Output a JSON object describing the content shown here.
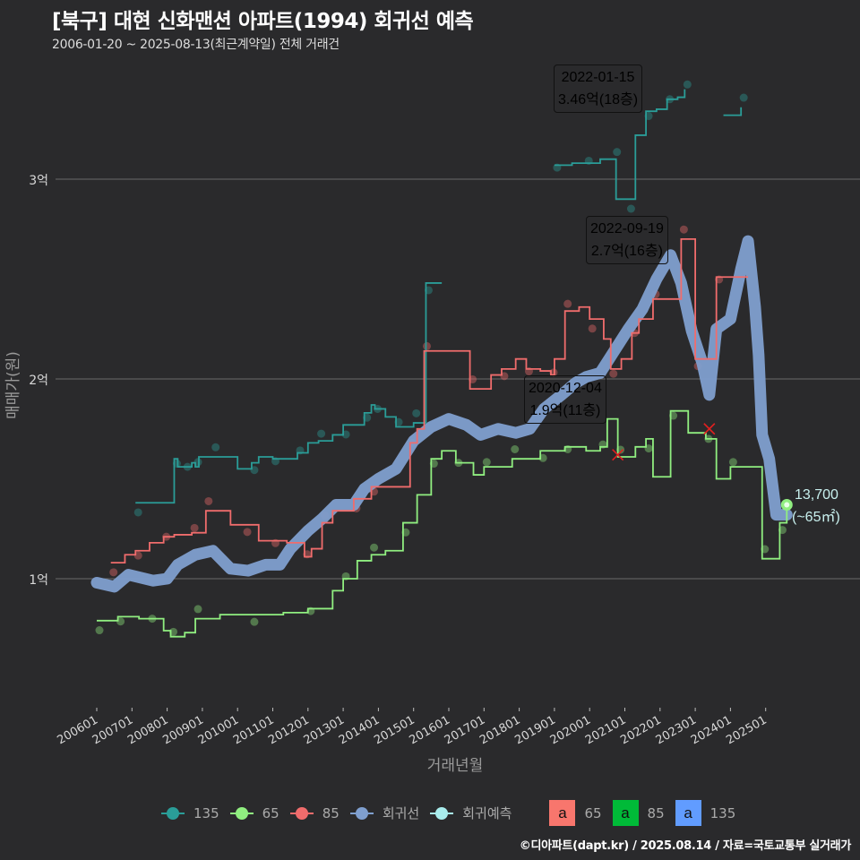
{
  "header": {
    "title": "[북구] 대현 신화맨션 아파트(1994) 회귀선 예측",
    "subtitle": "2006-01-20 ~ 2025-08-13(최근계약일) 전체 거래건"
  },
  "footer": {
    "credit": "©디아파트(dapt.kr) / 2025.08.14 / 자료=국토교통부 실거래가"
  },
  "colors": {
    "background": "#2a2a2c",
    "s135": "#2a9d98",
    "s65": "#90ee80",
    "s85": "#f06c6c",
    "regression": "#7f9fcf",
    "prediction": "#a8ecec",
    "box65": "#f8766d",
    "box85": "#00ba38",
    "box135": "#619cff"
  },
  "legend": {
    "lines": [
      {
        "label": "135",
        "color": "#2a9d98"
      },
      {
        "label": "65",
        "color": "#90ee80"
      },
      {
        "label": "85",
        "color": "#f06c6c"
      },
      {
        "label": "회귀선",
        "color": "#7f9fcf"
      },
      {
        "label": "회귀예측",
        "color": "#a8ecec"
      }
    ],
    "boxes": [
      {
        "glyph": "a",
        "label": "65",
        "color": "#f8766d"
      },
      {
        "glyph": "a",
        "label": "85",
        "color": "#00ba38"
      },
      {
        "glyph": "a",
        "label": "135",
        "color": "#619cff"
      }
    ]
  },
  "annotations": [
    {
      "date": "2022-01-15",
      "value": "3.46억(18층)",
      "color": "#619cff"
    },
    {
      "date": "2022-09-19",
      "value": "2.7억(16층)",
      "color": "#00ba38"
    },
    {
      "date": "2020-12-04",
      "value": "1.9억(11층)",
      "color": "#f8766d"
    }
  ],
  "prediction": {
    "value": "13,700",
    "area": "(~65㎡)"
  },
  "chart_data": {
    "type": "line",
    "title": "[북구] 대현 신화맨션 아파트(1994) 회귀선 예측",
    "subtitle": "2006-01-20 ~ 2025-08-13(최근계약일) 전체 거래건",
    "xlabel": "거래년월",
    "ylabel": "매매가(원)",
    "x_ticks": [
      "200601",
      "200701",
      "200801",
      "200901",
      "201001",
      "201101",
      "201201",
      "201301",
      "201401",
      "201501",
      "201601",
      "201701",
      "201801",
      "201901",
      "202001",
      "202101",
      "202201",
      "202301",
      "202401",
      "202501"
    ],
    "y_ticks": [
      "1억",
      "2억",
      "3억"
    ],
    "y_tick_values": [
      1.0,
      2.0,
      3.0
    ],
    "ylim": [
      0.4,
      3.6
    ],
    "y_unit": "억",
    "grid": true,
    "legend_position": "bottom",
    "series": [
      {
        "name": "135",
        "points": [
          [
            2007.1,
            1.38
          ],
          [
            2007.4,
            1.38
          ],
          [
            2008.2,
            1.6
          ],
          [
            2008.3,
            1.56
          ],
          [
            2008.5,
            1.56
          ],
          [
            2008.7,
            1.58
          ],
          [
            2008.8,
            1.56
          ],
          [
            2008.9,
            1.61
          ],
          [
            2009.3,
            1.61
          ],
          [
            2010.0,
            1.55
          ],
          [
            2010.4,
            1.58
          ],
          [
            2010.6,
            1.61
          ],
          [
            2011.0,
            1.6
          ],
          [
            2011.4,
            1.6
          ],
          [
            2011.7,
            1.63
          ],
          [
            2012.0,
            1.68
          ],
          [
            2012.3,
            1.69
          ],
          [
            2012.7,
            1.72
          ],
          [
            2013.0,
            1.77
          ],
          [
            2013.3,
            1.77
          ],
          [
            2013.6,
            1.83
          ],
          [
            2013.8,
            1.87
          ],
          [
            2013.9,
            1.85
          ],
          [
            2014.2,
            1.81
          ],
          [
            2014.5,
            1.76
          ],
          [
            2014.8,
            1.76
          ],
          [
            2015.0,
            1.78
          ],
          [
            2015.3,
            1.78
          ],
          [
            2015.35,
            2.48
          ],
          [
            2015.8,
            2.48
          ],
          [
            2019.0,
            3.07
          ],
          [
            2019.5,
            3.08
          ],
          [
            2019.9,
            3.08
          ],
          [
            2020.3,
            3.1
          ],
          [
            2020.7,
            3.1
          ],
          [
            2020.75,
            2.9
          ],
          [
            2021.1,
            2.9
          ],
          [
            2021.3,
            3.22
          ],
          [
            2021.6,
            3.34
          ],
          [
            2021.9,
            3.35
          ],
          [
            2022.2,
            3.4
          ],
          [
            2022.5,
            3.41
          ],
          [
            2022.7,
            3.45
          ],
          [
            2023.8,
            3.32
          ],
          [
            2024.3,
            3.36
          ]
        ]
      },
      {
        "name": "65",
        "points": [
          [
            2006.0,
            0.79
          ],
          [
            2006.3,
            0.79
          ],
          [
            2006.6,
            0.81
          ],
          [
            2007.2,
            0.8
          ],
          [
            2007.5,
            0.8
          ],
          [
            2007.9,
            0.74
          ],
          [
            2008.1,
            0.71
          ],
          [
            2008.5,
            0.73
          ],
          [
            2008.8,
            0.8
          ],
          [
            2009.5,
            0.82
          ],
          [
            2010.4,
            0.82
          ],
          [
            2011.3,
            0.83
          ],
          [
            2012.0,
            0.85
          ],
          [
            2012.7,
            0.94
          ],
          [
            2013.0,
            1.0
          ],
          [
            2013.4,
            1.09
          ],
          [
            2013.8,
            1.12
          ],
          [
            2014.2,
            1.14
          ],
          [
            2014.7,
            1.28
          ],
          [
            2015.1,
            1.42
          ],
          [
            2015.5,
            1.6
          ],
          [
            2015.8,
            1.64
          ],
          [
            2016.2,
            1.58
          ],
          [
            2016.7,
            1.52
          ],
          [
            2017.0,
            1.56
          ],
          [
            2017.4,
            1.56
          ],
          [
            2017.8,
            1.6
          ],
          [
            2018.3,
            1.6
          ],
          [
            2018.6,
            1.64
          ],
          [
            2018.9,
            1.64
          ],
          [
            2019.3,
            1.66
          ],
          [
            2019.9,
            1.64
          ],
          [
            2020.3,
            1.66
          ],
          [
            2020.5,
            1.8
          ],
          [
            2020.8,
            1.61
          ],
          [
            2021.3,
            1.66
          ],
          [
            2021.6,
            1.7
          ],
          [
            2021.8,
            1.51
          ],
          [
            2022.3,
            1.84
          ],
          [
            2022.8,
            1.73
          ],
          [
            2023.3,
            1.7
          ],
          [
            2023.6,
            1.5
          ],
          [
            2024.0,
            1.56
          ],
          [
            2024.4,
            1.56
          ],
          [
            2024.9,
            1.1
          ],
          [
            2025.2,
            1.1
          ],
          [
            2025.4,
            1.28
          ],
          [
            2025.6,
            1.37
          ]
        ]
      },
      {
        "name": "85",
        "points": [
          [
            2006.4,
            1.08
          ],
          [
            2006.8,
            1.12
          ],
          [
            2007.1,
            1.14
          ],
          [
            2007.5,
            1.18
          ],
          [
            2007.9,
            1.21
          ],
          [
            2008.2,
            1.22
          ],
          [
            2008.7,
            1.23
          ],
          [
            2009.0,
            1.23
          ],
          [
            2009.1,
            1.34
          ],
          [
            2009.8,
            1.27
          ],
          [
            2010.2,
            1.27
          ],
          [
            2010.6,
            1.19
          ],
          [
            2011.0,
            1.19
          ],
          [
            2011.4,
            1.18
          ],
          [
            2011.9,
            1.11
          ],
          [
            2012.1,
            1.15
          ],
          [
            2012.4,
            1.28
          ],
          [
            2012.7,
            1.34
          ],
          [
            2013.3,
            1.4
          ],
          [
            2013.7,
            1.4
          ],
          [
            2013.8,
            1.46
          ],
          [
            2014.5,
            1.46
          ],
          [
            2014.9,
            1.68
          ],
          [
            2015.1,
            1.75
          ],
          [
            2015.3,
            2.14
          ],
          [
            2015.8,
            2.14
          ],
          [
            2016.6,
            1.95
          ],
          [
            2017.2,
            2.02
          ],
          [
            2017.5,
            2.05
          ],
          [
            2017.9,
            2.1
          ],
          [
            2018.2,
            2.05
          ],
          [
            2018.6,
            2.04
          ],
          [
            2018.9,
            2.02
          ],
          [
            2019.0,
            2.1
          ],
          [
            2019.3,
            2.34
          ],
          [
            2019.7,
            2.36
          ],
          [
            2020.0,
            2.3
          ],
          [
            2020.4,
            2.2
          ],
          [
            2020.6,
            2.05
          ],
          [
            2020.9,
            2.1
          ],
          [
            2021.2,
            2.23
          ],
          [
            2021.4,
            2.3
          ],
          [
            2021.8,
            2.4
          ],
          [
            2022.2,
            2.4
          ],
          [
            2022.6,
            2.7
          ],
          [
            2022.9,
            2.7
          ],
          [
            2023.0,
            2.1
          ],
          [
            2023.5,
            2.1
          ],
          [
            2023.6,
            2.51
          ],
          [
            2024.5,
            2.51
          ]
        ]
      },
      {
        "name": "회귀선",
        "points": [
          [
            2006.0,
            0.98
          ],
          [
            2006.5,
            0.96
          ],
          [
            2006.9,
            1.02
          ],
          [
            2007.6,
            0.99
          ],
          [
            2008.0,
            1.0
          ],
          [
            2008.3,
            1.07
          ],
          [
            2008.8,
            1.12
          ],
          [
            2009.3,
            1.14
          ],
          [
            2009.8,
            1.05
          ],
          [
            2010.3,
            1.04
          ],
          [
            2010.8,
            1.07
          ],
          [
            2011.2,
            1.07
          ],
          [
            2011.5,
            1.15
          ],
          [
            2012.0,
            1.24
          ],
          [
            2012.4,
            1.3
          ],
          [
            2012.8,
            1.37
          ],
          [
            2013.3,
            1.37
          ],
          [
            2013.6,
            1.45
          ],
          [
            2014.0,
            1.5
          ],
          [
            2014.5,
            1.55
          ],
          [
            2015.0,
            1.69
          ],
          [
            2015.5,
            1.76
          ],
          [
            2016.0,
            1.8
          ],
          [
            2016.5,
            1.77
          ],
          [
            2016.9,
            1.72
          ],
          [
            2017.4,
            1.75
          ],
          [
            2017.9,
            1.73
          ],
          [
            2018.3,
            1.75
          ],
          [
            2018.7,
            1.85
          ],
          [
            2019.2,
            1.92
          ],
          [
            2019.6,
            1.98
          ],
          [
            2019.9,
            2.01
          ],
          [
            2020.3,
            2.03
          ],
          [
            2020.7,
            2.14
          ],
          [
            2021.1,
            2.25
          ],
          [
            2021.5,
            2.35
          ],
          [
            2021.9,
            2.5
          ],
          [
            2022.3,
            2.62
          ],
          [
            2022.6,
            2.48
          ],
          [
            2022.9,
            2.24
          ],
          [
            2023.2,
            2.08
          ],
          [
            2023.4,
            1.92
          ],
          [
            2023.6,
            2.25
          ],
          [
            2024.0,
            2.3
          ],
          [
            2024.3,
            2.55
          ],
          [
            2024.5,
            2.69
          ],
          [
            2024.7,
            2.36
          ],
          [
            2024.8,
            2.12
          ],
          [
            2024.9,
            1.72
          ],
          [
            2025.1,
            1.6
          ],
          [
            2025.3,
            1.32
          ],
          [
            2025.6,
            1.32
          ]
        ]
      },
      {
        "name": "회귀예측",
        "points": [
          [
            2025.6,
            1.37
          ]
        ]
      }
    ],
    "scatter_note": "semi-transparent individual transaction points per area group",
    "annotations": [
      {
        "text": "2022-01-15\n3.46억(18층)",
        "x": 2022.04,
        "y": 3.46,
        "series": "135"
      },
      {
        "text": "2022-09-19\n2.7억(16층)",
        "x": 2022.72,
        "y": 2.7,
        "series": "85"
      },
      {
        "text": "2020-12-04\n1.9억(11층)",
        "x": 2020.92,
        "y": 1.9,
        "series": "65"
      },
      {
        "text": "13,700\n(~65㎡)",
        "x": 2025.6,
        "y": 1.37,
        "series": "회귀예측"
      }
    ]
  }
}
